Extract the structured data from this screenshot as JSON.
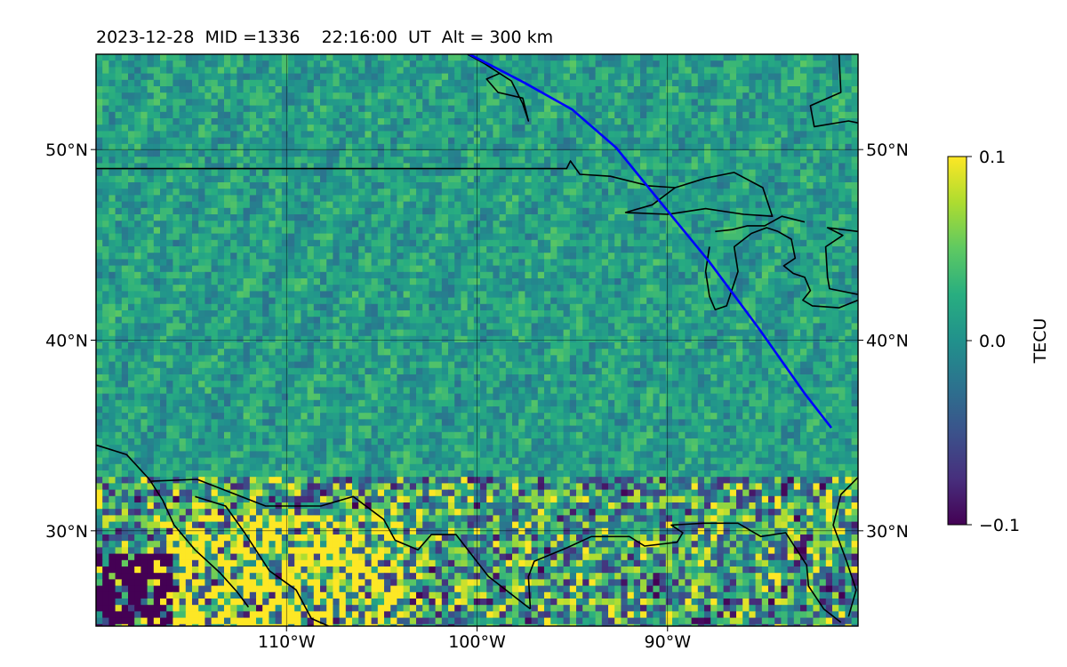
{
  "chart_data": {
    "type": "heatmap",
    "title": "2023-12-28  MID =1336    22:16:00  UT  Alt = 300 km",
    "date": "2023-12-28",
    "mid": 1336,
    "time_ut": "22:16:00",
    "altitude_km": 300,
    "projection": "lon-lat map",
    "xlim": [
      -120,
      -80
    ],
    "ylim": [
      25,
      55
    ],
    "x_ticks": [
      -110,
      -100,
      -90
    ],
    "x_tick_labels": [
      "110°W",
      "100°W",
      "90°W"
    ],
    "y_ticks": [
      30,
      40,
      50
    ],
    "y_tick_labels": [
      "30°N",
      "40°N",
      "50°N"
    ],
    "grid": true,
    "colormap": "viridis",
    "colorbar": {
      "label": "TECU",
      "vmin": -0.1,
      "vmax": 0.1,
      "ticks": [
        0.1,
        0.0,
        -0.1
      ],
      "tick_labels": [
        "0.1",
        "0.0",
        "−0.1"
      ],
      "position": "right"
    },
    "features": {
      "coastlines_color": "#000000",
      "track_color": "#0000ff",
      "track_points": [
        [
          -100.4,
          55.0
        ],
        [
          -97.5,
          53.5
        ],
        [
          -95.0,
          52.1
        ],
        [
          -92.7,
          50.1
        ],
        [
          -90.5,
          47.4
        ],
        [
          -87.8,
          44.1
        ],
        [
          -85.2,
          40.6
        ],
        [
          -82.8,
          37.2
        ],
        [
          -81.4,
          35.4
        ]
      ]
    }
  }
}
